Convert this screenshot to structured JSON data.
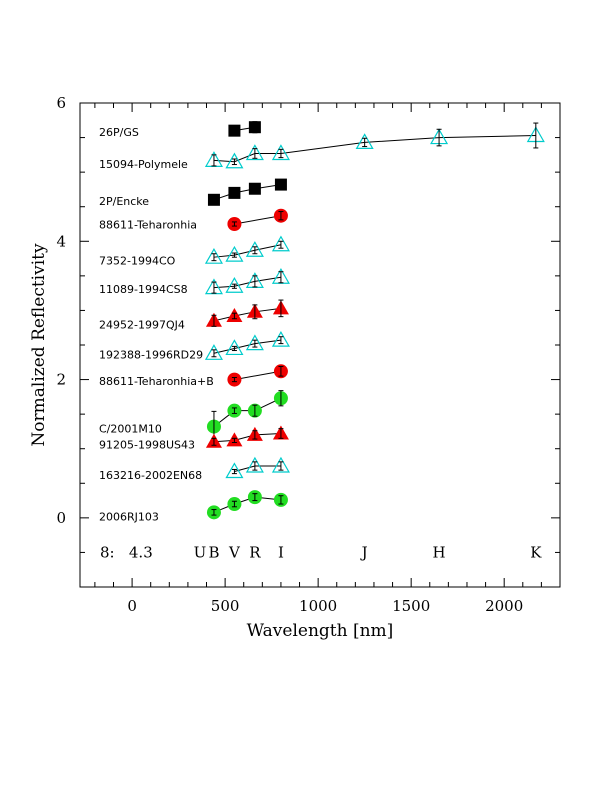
{
  "chart_data": {
    "type": "scatter",
    "xlabel": "Wavelength [nm]",
    "ylabel": "Normalized Reflectivity",
    "xlim": [
      -280,
      2300
    ],
    "ylim": [
      -1,
      6
    ],
    "x_ticks": [
      0,
      500,
      1000,
      1500,
      2000
    ],
    "y_ticks": [
      0,
      2,
      4,
      6
    ],
    "grid": false,
    "legend": "none",
    "annotation": {
      "text": "8:   4.3",
      "x": -20,
      "y": -0.5
    },
    "bands": [
      {
        "label": "U",
        "x": 365
      },
      {
        "label": "B",
        "x": 440
      },
      {
        "label": "V",
        "x": 550
      },
      {
        "label": "R",
        "x": 660
      },
      {
        "label": "I",
        "x": 800
      },
      {
        "label": "J",
        "x": 1250
      },
      {
        "label": "H",
        "x": 1650
      },
      {
        "label": "K",
        "x": 2170
      }
    ],
    "series": [
      {
        "name": "26P/GS",
        "marker": "square",
        "color": "#000000",
        "label_y": 5.58,
        "points": [
          {
            "x": 550,
            "y": 5.6,
            "err": 0.04
          },
          {
            "x": 660,
            "y": 5.65,
            "err": 0.08
          }
        ]
      },
      {
        "name": "15094-Polymele",
        "marker": "triangle-open",
        "color": "#00cccc",
        "label_y": 5.12,
        "points": [
          {
            "x": 440,
            "y": 5.17,
            "err": 0.08
          },
          {
            "x": 550,
            "y": 5.15,
            "err": 0.04
          },
          {
            "x": 660,
            "y": 5.27,
            "err": 0.07
          },
          {
            "x": 800,
            "y": 5.27,
            "err": 0.06
          },
          {
            "x": 1250,
            "y": 5.43,
            "err": 0.06
          },
          {
            "x": 1650,
            "y": 5.5,
            "err": 0.12
          },
          {
            "x": 2170,
            "y": 5.53,
            "err": 0.18
          }
        ]
      },
      {
        "name": "2P/Encke",
        "marker": "square",
        "color": "#000000",
        "label_y": 4.58,
        "points": [
          {
            "x": 440,
            "y": 4.6,
            "err": 0.03
          },
          {
            "x": 550,
            "y": 4.7,
            "err": 0.03
          },
          {
            "x": 660,
            "y": 4.76,
            "err": 0.03
          },
          {
            "x": 800,
            "y": 4.82,
            "err": 0.03
          }
        ]
      },
      {
        "name": "88611-Teharonhia",
        "marker": "circle",
        "color": "#ee0000",
        "label_y": 4.24,
        "points": [
          {
            "x": 550,
            "y": 4.25,
            "err": 0.03
          },
          {
            "x": 800,
            "y": 4.37,
            "err": 0.06
          }
        ]
      },
      {
        "name": "7352-1994CO",
        "marker": "triangle-open",
        "color": "#00cccc",
        "label_y": 3.72,
        "points": [
          {
            "x": 440,
            "y": 3.77,
            "err": 0.05
          },
          {
            "x": 550,
            "y": 3.8,
            "err": 0.03
          },
          {
            "x": 660,
            "y": 3.87,
            "err": 0.05
          },
          {
            "x": 800,
            "y": 3.95,
            "err": 0.05
          }
        ]
      },
      {
        "name": "11089-1994CS8",
        "marker": "triangle-open",
        "color": "#00cccc",
        "label_y": 3.31,
        "points": [
          {
            "x": 440,
            "y": 3.33,
            "err": 0.08
          },
          {
            "x": 550,
            "y": 3.35,
            "err": 0.03
          },
          {
            "x": 660,
            "y": 3.42,
            "err": 0.08
          },
          {
            "x": 800,
            "y": 3.48,
            "err": 0.08
          }
        ]
      },
      {
        "name": "24952-1997QJ4",
        "marker": "triangle",
        "color": "#ee0000",
        "label_y": 2.8,
        "points": [
          {
            "x": 440,
            "y": 2.85,
            "err": 0.08
          },
          {
            "x": 550,
            "y": 2.92,
            "err": 0.04
          },
          {
            "x": 660,
            "y": 2.98,
            "err": 0.1
          },
          {
            "x": 800,
            "y": 3.03,
            "err": 0.12
          }
        ]
      },
      {
        "name": "192388-1996RD29",
        "marker": "triangle-open",
        "color": "#00cccc",
        "label_y": 2.36,
        "points": [
          {
            "x": 440,
            "y": 2.38,
            "err": 0.05
          },
          {
            "x": 550,
            "y": 2.45,
            "err": 0.03
          },
          {
            "x": 660,
            "y": 2.52,
            "err": 0.05
          },
          {
            "x": 800,
            "y": 2.57,
            "err": 0.05
          }
        ]
      },
      {
        "name": "88611-Teharonhia+B",
        "marker": "circle",
        "color": "#ee0000",
        "label_y": 1.98,
        "points": [
          {
            "x": 550,
            "y": 2.0,
            "err": 0.03
          },
          {
            "x": 800,
            "y": 2.12,
            "err": 0.07
          }
        ]
      },
      {
        "name": "C/2001M10",
        "marker": "circle",
        "color": "#22dd22",
        "label_y": 1.29,
        "points": [
          {
            "x": 440,
            "y": 1.32,
            "err": 0.22
          },
          {
            "x": 550,
            "y": 1.55,
            "err": 0.04
          },
          {
            "x": 660,
            "y": 1.55,
            "err": 0.08
          },
          {
            "x": 800,
            "y": 1.73,
            "err": 0.11
          }
        ]
      },
      {
        "name": "91205-1998US43",
        "marker": "triangle",
        "color": "#ee0000",
        "label_y": 1.06,
        "points": [
          {
            "x": 440,
            "y": 1.1,
            "err": 0.05
          },
          {
            "x": 550,
            "y": 1.12,
            "err": 0.03
          },
          {
            "x": 660,
            "y": 1.2,
            "err": 0.06
          },
          {
            "x": 800,
            "y": 1.22,
            "err": 0.07
          }
        ]
      },
      {
        "name": "163216-2002EN68",
        "marker": "triangle-open",
        "color": "#00cccc",
        "label_y": 0.62,
        "points": [
          {
            "x": 550,
            "y": 0.67,
            "err": 0.03
          },
          {
            "x": 660,
            "y": 0.75,
            "err": 0.06
          },
          {
            "x": 800,
            "y": 0.75,
            "err": 0.06
          }
        ]
      },
      {
        "name": "2006RJ103",
        "marker": "circle",
        "color": "#22dd22",
        "label_y": 0.02,
        "points": [
          {
            "x": 440,
            "y": 0.08,
            "err": 0.04
          },
          {
            "x": 550,
            "y": 0.2,
            "err": 0.04
          },
          {
            "x": 660,
            "y": 0.3,
            "err": 0.05
          },
          {
            "x": 800,
            "y": 0.26,
            "err": 0.06
          }
        ]
      }
    ]
  }
}
